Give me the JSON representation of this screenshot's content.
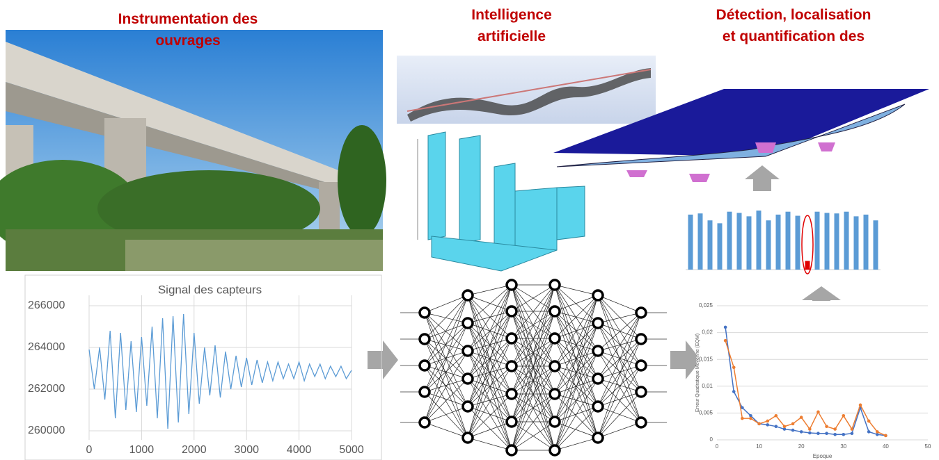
{
  "titles": {
    "left": "Instrumentation des ouvrages",
    "middle": "Intelligence artificielle",
    "right": "Détection, localisation et quantification des"
  },
  "chart_data": [
    {
      "type": "line",
      "title": "Signal des capteurs",
      "x": [
        0,
        100,
        200,
        300,
        400,
        500,
        600,
        700,
        800,
        900,
        1000,
        1100,
        1200,
        1300,
        1400,
        1500,
        1600,
        1700,
        1800,
        1900,
        2000,
        2100,
        2200,
        2300,
        2400,
        2500,
        2600,
        2700,
        2800,
        2900,
        3000,
        3100,
        3200,
        3300,
        3400,
        3500,
        3600,
        3700,
        3800,
        3900,
        4000,
        4100,
        4200,
        4300,
        4400,
        4500,
        4600,
        4700,
        4800,
        4900,
        5000
      ],
      "series": [
        {
          "color": "#5b9bd5",
          "values": [
            263900,
            262000,
            264000,
            261500,
            264800,
            260600,
            264700,
            261000,
            264300,
            260900,
            264500,
            261200,
            265000,
            260600,
            265400,
            260100,
            265500,
            260400,
            265600,
            260800,
            264700,
            261300,
            264000,
            261700,
            264100,
            261600,
            263800,
            262000,
            263600,
            262100,
            263500,
            262200,
            263400,
            262300,
            263300,
            262400,
            263300,
            262500,
            263200,
            262500,
            263300,
            262400,
            263200,
            262600,
            263200,
            262500,
            263100,
            262600,
            263100,
            262500,
            262900
          ]
        }
      ],
      "xlim": [
        0,
        5000
      ],
      "xticks": [
        0,
        1000,
        2000,
        3000,
        4000,
        5000
      ],
      "ylim": [
        259000,
        266500
      ],
      "yticks": [
        260000,
        262000,
        264000,
        266000
      ],
      "grid": true
    },
    {
      "type": "bar",
      "values": [
        0.95,
        0.97,
        0.85,
        0.8,
        1.0,
        0.98,
        0.92,
        1.02,
        0.85,
        0.95,
        1.0,
        0.93,
        0.15,
        1.0,
        0.98,
        0.97,
        1.0,
        0.92,
        0.95,
        0.85
      ],
      "colors": [
        "#5b9bd5",
        "#5b9bd5",
        "#5b9bd5",
        "#5b9bd5",
        "#5b9bd5",
        "#5b9bd5",
        "#5b9bd5",
        "#5b9bd5",
        "#5b9bd5",
        "#5b9bd5",
        "#5b9bd5",
        "#5b9bd5",
        "#e00000",
        "#5b9bd5",
        "#5b9bd5",
        "#5b9bd5",
        "#5b9bd5",
        "#5b9bd5",
        "#5b9bd5",
        "#5b9bd5"
      ],
      "ylim": [
        0,
        1.2
      ]
    },
    {
      "type": "line",
      "xlabel": "Epoque",
      "ylabel": "Erreur Quadratique Moyenne (EQM)",
      "x": [
        2,
        4,
        6,
        8,
        10,
        12,
        14,
        16,
        18,
        20,
        22,
        24,
        26,
        28,
        30,
        32,
        34,
        36,
        38,
        40
      ],
      "series": [
        {
          "color": "#4472c4",
          "values": [
            0.021,
            0.009,
            0.006,
            0.0045,
            0.003,
            0.0028,
            0.0025,
            0.002,
            0.0018,
            0.0015,
            0.0013,
            0.0012,
            0.0012,
            0.001,
            0.001,
            0.0012,
            0.006,
            0.0015,
            0.001,
            0.0008
          ]
        },
        {
          "color": "#ed7d31",
          "values": [
            0.0185,
            0.0135,
            0.004,
            0.004,
            0.003,
            0.0035,
            0.0045,
            0.0025,
            0.003,
            0.0042,
            0.002,
            0.0052,
            0.0025,
            0.002,
            0.0045,
            0.002,
            0.0065,
            0.0035,
            0.0015,
            0.0008
          ]
        }
      ],
      "xlim": [
        0,
        50
      ],
      "xticks": [
        0,
        10,
        20,
        30,
        40,
        50
      ],
      "ylim": [
        0,
        0.025
      ],
      "yticks": [
        0,
        {
          "value": 0.005,
          "label": "0,005"
        },
        {
          "value": 0.01,
          "label": "0,01"
        },
        {
          "value": 0.015,
          "label": "0,015"
        },
        {
          "value": 0.02,
          "label": "0,02"
        },
        {
          "value": 0.025,
          "label": "0,025"
        }
      ],
      "grid": true,
      "markers": true
    }
  ]
}
